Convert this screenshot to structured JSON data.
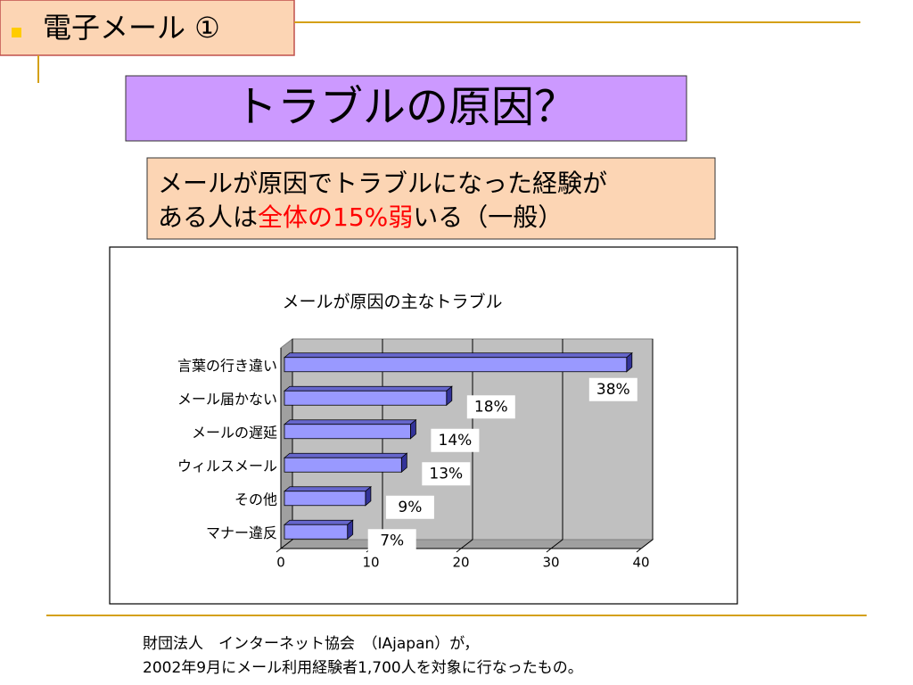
{
  "header": {
    "title": "電子メール ①"
  },
  "slide_title": "トラブルの原因？",
  "callout": {
    "line1": "メールが原因でトラブルになった経験が",
    "line2_before": "ある人は",
    "line2_highlight": "全体の15%弱",
    "line2_after": "いる（一般）"
  },
  "chart_data": {
    "type": "bar",
    "orientation": "horizontal",
    "title": "メールが原因の主なトラブル",
    "categories": [
      "言葉の行き違い",
      "メール届かない",
      "メールの遅延",
      "ウィルスメール",
      "その他",
      "マナー違反"
    ],
    "values": [
      38,
      18,
      14,
      13,
      9,
      7
    ],
    "value_labels": [
      "38%",
      "18%",
      "14%",
      "13%",
      "9%",
      "7%"
    ],
    "color": "#9999ff",
    "xlim": [
      0,
      40
    ],
    "xticks": [
      0,
      10,
      20,
      30,
      40
    ],
    "grid": true
  },
  "footnote": {
    "line1": "財団法人　インターネット協会　（IAjapan）が，",
    "line2": "2002年9月にメール利用経験者1,700人を対象に行なったもの。"
  }
}
